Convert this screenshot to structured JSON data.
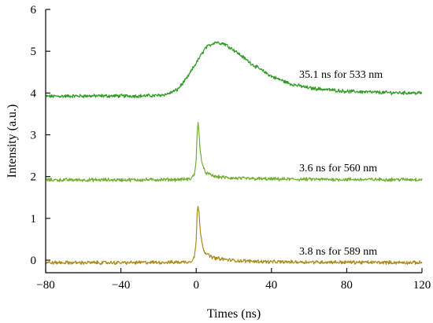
{
  "chart_data": {
    "type": "line",
    "xlabel": "Times (ns)",
    "ylabel": "Intensity (a.u.)",
    "xlim": [
      -80,
      120
    ],
    "ylim": [
      -0.3,
      6
    ],
    "xticks": [
      -80,
      -40,
      0,
      40,
      80,
      120
    ],
    "xtick_labels": [
      "−80",
      "−40",
      "0",
      "40",
      "80",
      "120"
    ],
    "yticks": [
      0,
      1,
      2,
      3,
      4,
      5,
      6
    ],
    "ytick_labels": [
      "0",
      "1",
      "2",
      "3",
      "4",
      "5",
      "6"
    ],
    "grid": false,
    "series": [
      {
        "color": "#2e9a23",
        "label": "35.1 ns for 533 nm",
        "x": [
          -80,
          -60,
          -40,
          -30,
          -20,
          -15,
          -10,
          -5,
          0,
          5,
          10,
          15,
          20,
          30,
          40,
          50,
          60,
          80,
          100,
          120
        ],
        "y": [
          3.92,
          3.93,
          3.93,
          3.93,
          3.94,
          3.98,
          4.08,
          4.35,
          4.72,
          5.08,
          5.22,
          5.18,
          5.03,
          4.68,
          4.4,
          4.22,
          4.12,
          4.04,
          4.01,
          4.0
        ]
      },
      {
        "color": "#6fae2f",
        "label": "3.6 ns for 560 nm",
        "x": [
          -80,
          -40,
          -10,
          -3,
          -1,
          0,
          0.5,
          1,
          1.5,
          2,
          3,
          4,
          5,
          7,
          10,
          20,
          40,
          80,
          120
        ],
        "y": [
          1.92,
          1.92,
          1.93,
          1.94,
          2.05,
          2.4,
          3.05,
          3.27,
          3.05,
          2.7,
          2.35,
          2.18,
          2.1,
          2.05,
          2.0,
          1.96,
          1.94,
          1.93,
          1.93
        ]
      },
      {
        "color": "#a98a1a",
        "label": "3.8 ns for 589 nm",
        "x": [
          -80,
          -40,
          -10,
          -3,
          -1,
          0,
          0.5,
          1,
          1.5,
          2,
          3,
          4,
          5,
          7,
          10,
          20,
          40,
          80,
          120
        ],
        "y": [
          -0.06,
          -0.06,
          -0.05,
          -0.04,
          0.08,
          0.45,
          1.1,
          1.32,
          1.12,
          0.8,
          0.45,
          0.25,
          0.17,
          0.1,
          0.05,
          -0.01,
          -0.04,
          -0.05,
          -0.06
        ]
      }
    ]
  }
}
